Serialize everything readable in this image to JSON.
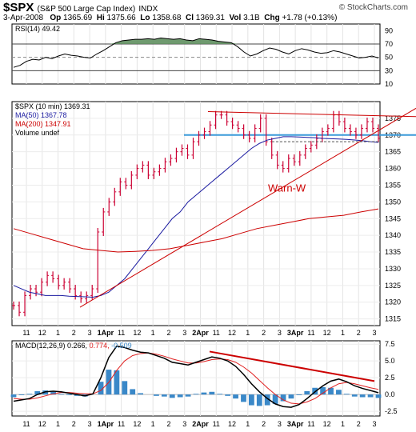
{
  "header": {
    "symbol": "$SPX",
    "name": "(S&P 500 Large Cap Index)",
    "exchange": "INDX",
    "brand": "© StockCharts.com",
    "date": "3-Apr-2008",
    "open_label": "Op",
    "open": "1365.69",
    "high_label": "Hi",
    "high": "1375.66",
    "low_label": "Lo",
    "low": "1358.68",
    "close_label": "Cl",
    "close": "1369.31",
    "vol_label": "Vol",
    "vol": "3.1B",
    "chg_label": "Chg",
    "chg": "+1.78 (+0.13%)"
  },
  "colors": {
    "price_bar": "#cc0033",
    "ma50": "#1a1aa0",
    "ma200": "#cc0000",
    "hline": "#3a9ad9",
    "trend": "#cc0000",
    "rsi_fill": "#5f8f5f",
    "macd_hist": "#3a88c8",
    "macd_signal": "#e02020"
  },
  "chart_data": [
    {
      "type": "line",
      "panel": "RSI",
      "legend": "RSI(14) 49.42",
      "ylim": [
        10,
        100
      ],
      "y_ticks": [
        90,
        70,
        50,
        30,
        10
      ],
      "reference_lines": [
        70,
        50,
        30
      ],
      "series": [
        {
          "name": "RSI(14)",
          "values": [
            35,
            38,
            44,
            47,
            46,
            50,
            48,
            52,
            55,
            53,
            52,
            50,
            49,
            55,
            60,
            66,
            72,
            75,
            76,
            77,
            77,
            78,
            77,
            79,
            78,
            77,
            78,
            76,
            75,
            78,
            77,
            76,
            74,
            73,
            72,
            66,
            58,
            52,
            55,
            60,
            64,
            62,
            58,
            55,
            60,
            63,
            61,
            58,
            56,
            57,
            60,
            58,
            55,
            52,
            49,
            50,
            52,
            49
          ]
        }
      ]
    },
    {
      "type": "line",
      "panel": "Price",
      "title": "$SPX (10 min) 1369.31",
      "ylim": [
        1313,
        1380
      ],
      "y_ticks": [
        1375,
        1370,
        1365,
        1360,
        1355,
        1350,
        1345,
        1340,
        1335,
        1330,
        1325,
        1320,
        1315
      ],
      "x_tick_labels": [
        "11",
        "12",
        "1",
        "2",
        "3",
        "1Apr",
        "11",
        "12",
        "1",
        "2",
        "3",
        "2Apr",
        "11",
        "12",
        "1",
        "2",
        "3",
        "3Apr",
        "11",
        "12",
        "1",
        "2",
        "3"
      ],
      "series": [
        {
          "name": "$SPX",
          "values": [
            1319,
            1317,
            1322,
            1324,
            1323,
            1326,
            1328,
            1327,
            1325,
            1326,
            1324,
            1322,
            1321,
            1322,
            1324,
            1341,
            1347,
            1350,
            1353,
            1356,
            1355,
            1358,
            1360,
            1361,
            1358,
            1359,
            1360,
            1362,
            1363,
            1365,
            1366,
            1364,
            1368,
            1370,
            1371,
            1373,
            1376,
            1376,
            1374,
            1373,
            1372,
            1370,
            1369,
            1372,
            1375,
            1368,
            1364,
            1361,
            1360,
            1363,
            1362,
            1364,
            1366,
            1367,
            1369,
            1371,
            1372,
            1376,
            1374,
            1372,
            1371,
            1370,
            1372,
            1374,
            1372,
            1369
          ]
        },
        {
          "name": "MA(50) 1367.78",
          "values": [
            1325,
            1324,
            1323,
            1322.5,
            1322,
            1322,
            1322,
            1321.8,
            1321.7,
            1321.6,
            1321.5,
            1322,
            1323,
            1325,
            1327,
            1330,
            1333,
            1336,
            1339,
            1342,
            1345,
            1347,
            1350,
            1352,
            1354,
            1356,
            1358,
            1360,
            1362,
            1364,
            1366,
            1367.5,
            1368.5,
            1369,
            1369.5,
            1369.5,
            1369.4,
            1369.3,
            1369.2,
            1369,
            1368.9,
            1368.8,
            1368.7,
            1368.5,
            1368.3,
            1368,
            1367.8
          ]
        },
        {
          "name": "MA(200) 1347.91",
          "values": [
            1342,
            1340.5,
            1339,
            1337.5,
            1336,
            1335.5,
            1335,
            1335.2,
            1335.5,
            1336,
            1337,
            1338,
            1339,
            1340.5,
            1342,
            1343,
            1344,
            1345,
            1345.5,
            1346,
            1347,
            1347.9
          ]
        },
        {
          "name": "Volume undef",
          "values": []
        }
      ],
      "horizontal_line": 1370,
      "annotation": "Warn-W"
    },
    {
      "type": "line",
      "panel": "MACD",
      "legend": "MACD(12,26,9) 0.266, 0.774, -0.509",
      "legend_parts": {
        "label": "MACD(12,26,9)",
        "macd": "0.266",
        "signal": "0.774",
        "hist": "-0.509"
      },
      "ylim": [
        -3.2,
        8
      ],
      "y_ticks": [
        7.5,
        5.0,
        2.5,
        0.0,
        -2.5
      ],
      "series": [
        {
          "name": "MACD",
          "values": [
            -1.0,
            -0.8,
            -0.6,
            0.0,
            0.4,
            0.5,
            0.4,
            0.2,
            0.0,
            -0.2,
            0.1,
            2.5,
            5.5,
            7.2,
            7.0,
            6.6,
            6.3,
            6.2,
            5.8,
            5.4,
            4.8,
            4.6,
            4.4,
            4.8,
            5.2,
            5.6,
            5.4,
            5.0,
            4.2,
            3.0,
            1.6,
            0.4,
            -0.6,
            -1.4,
            -1.8,
            -1.9,
            -1.5,
            -0.6,
            0.4,
            1.3,
            2.0,
            2.3,
            1.9,
            1.3,
            0.9,
            0.6,
            0.27
          ]
        },
        {
          "name": "Signal",
          "values": [
            -0.6,
            -0.7,
            -0.7,
            -0.5,
            -0.2,
            0.1,
            0.3,
            0.3,
            0.2,
            0.1,
            0.1,
            0.6,
            1.8,
            3.6,
            5.0,
            5.8,
            6.1,
            6.2,
            6.0,
            5.7,
            5.3,
            5.0,
            4.7,
            4.7,
            4.9,
            5.2,
            5.3,
            5.2,
            4.8,
            4.1,
            3.2,
            2.1,
            1.0,
            0.0,
            -0.8,
            -1.3,
            -1.4,
            -1.1,
            -0.6,
            0.2,
            1.0,
            1.6,
            1.8,
            1.6,
            1.3,
            1.0,
            0.77
          ]
        },
        {
          "name": "Histogram",
          "values": [
            -0.4,
            -0.1,
            0.1,
            0.5,
            0.6,
            0.4,
            0.1,
            -0.1,
            -0.2,
            -0.3,
            0.0,
            1.9,
            3.7,
            3.6,
            2.0,
            0.8,
            0.2,
            0.0,
            -0.2,
            -0.3,
            -0.5,
            -0.4,
            -0.3,
            0.1,
            0.3,
            0.4,
            0.1,
            -0.2,
            -0.6,
            -1.1,
            -1.6,
            -1.7,
            -1.6,
            -1.4,
            -1.0,
            -0.6,
            -0.1,
            0.5,
            1.0,
            1.1,
            1.0,
            0.7,
            0.1,
            -0.3,
            -0.4,
            -0.4,
            -0.51
          ]
        }
      ]
    }
  ]
}
